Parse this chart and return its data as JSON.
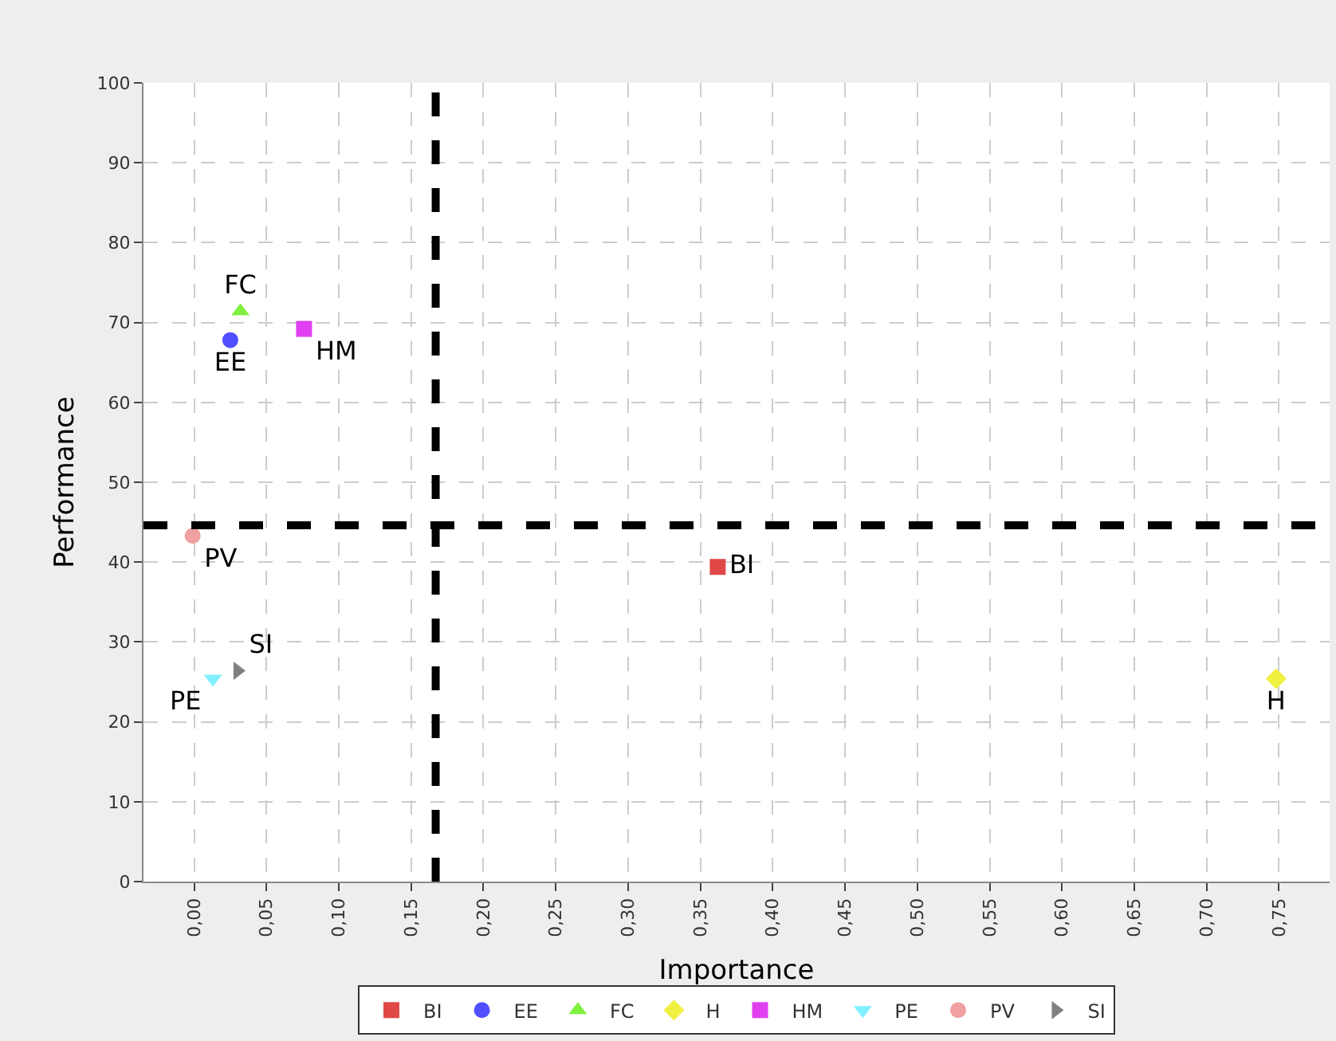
{
  "chart_data": {
    "type": "scatter",
    "xlabel": "Importance",
    "ylabel": "Performance",
    "xlim": [
      -0.035,
      0.785
    ],
    "xticks": [
      {
        "value": 0,
        "label": "0,00"
      },
      {
        "value": 0.05,
        "label": "0,05"
      },
      {
        "value": 0.1,
        "label": "0,10"
      },
      {
        "value": 0.15,
        "label": "0,15"
      },
      {
        "value": 0.2,
        "label": "0,20"
      },
      {
        "value": 0.25,
        "label": "0,25"
      },
      {
        "value": 0.3,
        "label": "0,30"
      },
      {
        "value": 0.35,
        "label": "0,35"
      },
      {
        "value": 0.4,
        "label": "0,40"
      },
      {
        "value": 0.45,
        "label": "0,45"
      },
      {
        "value": 0.5,
        "label": "0,50"
      },
      {
        "value": 0.55,
        "label": "0,55"
      },
      {
        "value": 0.6,
        "label": "0,60"
      },
      {
        "value": 0.65,
        "label": "0,65"
      },
      {
        "value": 0.7,
        "label": "0,70"
      },
      {
        "value": 0.75,
        "label": "0,75"
      }
    ],
    "ylim": [
      0,
      100
    ],
    "yticks": [
      0,
      10,
      20,
      30,
      40,
      50,
      60,
      70,
      80,
      90,
      100
    ],
    "grid": true,
    "legend": "bottom",
    "series": [
      {
        "name": "BI",
        "color": "#e04848",
        "marker": "square",
        "x": [
          0.362
        ],
        "values": [
          39.4
        ]
      },
      {
        "name": "EE",
        "color": "#5050ff",
        "marker": "circle",
        "x": [
          0.025
        ],
        "values": [
          67.8
        ]
      },
      {
        "name": "FC",
        "color": "#80f040",
        "marker": "triangle",
        "x": [
          0.032
        ],
        "values": [
          71.4
        ]
      },
      {
        "name": "H",
        "color": "#f0f040",
        "marker": "diamond",
        "x": [
          0.748
        ],
        "values": [
          25.4
        ]
      },
      {
        "name": "HM",
        "color": "#e040f0",
        "marker": "square",
        "x": [
          0.076
        ],
        "values": [
          69.2
        ]
      },
      {
        "name": "PE",
        "color": "#80f0ff",
        "marker": "triangle-down",
        "x": [
          0.013
        ],
        "values": [
          25.4
        ]
      },
      {
        "name": "PV",
        "color": "#f0a0a0",
        "marker": "circle",
        "x": [
          -0.001
        ],
        "values": [
          43.3
        ]
      },
      {
        "name": "SI",
        "color": "#808080",
        "marker": "triangle-right",
        "x": [
          0.03
        ],
        "values": [
          26.4
        ]
      }
    ],
    "ref_lines": [
      {
        "axis": "x",
        "value": 0.167,
        "color": "#000000",
        "line_style": "dashed"
      },
      {
        "axis": "y",
        "value": 44.6,
        "color": "#000000",
        "line_style": "dashed"
      }
    ]
  }
}
